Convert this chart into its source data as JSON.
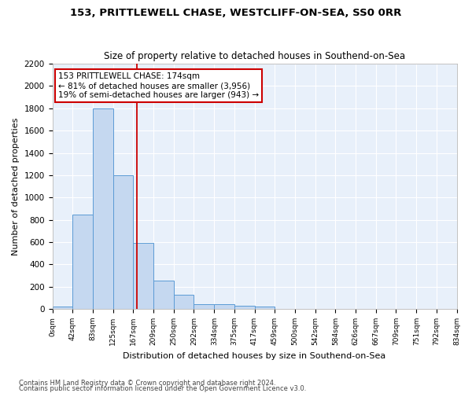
{
  "title": "153, PRITTLEWELL CHASE, WESTCLIFF-ON-SEA, SS0 0RR",
  "subtitle": "Size of property relative to detached houses in Southend-on-Sea",
  "xlabel": "Distribution of detached houses by size in Southend-on-Sea",
  "ylabel": "Number of detached properties",
  "footnote1": "Contains HM Land Registry data © Crown copyright and database right 2024.",
  "footnote2": "Contains public sector information licensed under the Open Government Licence v3.0.",
  "bar_edges": [
    0,
    42,
    83,
    125,
    167,
    209,
    250,
    292,
    334,
    375,
    417,
    459,
    500,
    542,
    584,
    626,
    667,
    709,
    751,
    792,
    834
  ],
  "bar_heights": [
    25,
    850,
    1800,
    1200,
    590,
    255,
    130,
    45,
    40,
    28,
    20,
    0,
    0,
    0,
    0,
    0,
    0,
    0,
    0,
    0
  ],
  "bar_color": "#c5d8f0",
  "bar_edge_color": "#5b9bd5",
  "background_color": "#e8f0fa",
  "grid_color": "#ffffff",
  "red_line_x": 174,
  "annotation_line1": "153 PRITTLEWELL CHASE: 174sqm",
  "annotation_line2": "← 81% of detached houses are smaller (3,956)",
  "annotation_line3": "19% of semi-detached houses are larger (943) →",
  "annotation_box_color": "#ffffff",
  "annotation_box_edge": "#cc0000",
  "ylim_max": 2200,
  "yticks": [
    0,
    200,
    400,
    600,
    800,
    1000,
    1200,
    1400,
    1600,
    1800,
    2000,
    2200
  ],
  "tick_labels": [
    "0sqm",
    "42sqm",
    "83sqm",
    "125sqm",
    "167sqm",
    "209sqm",
    "250sqm",
    "292sqm",
    "334sqm",
    "375sqm",
    "417sqm",
    "459sqm",
    "500sqm",
    "542sqm",
    "584sqm",
    "626sqm",
    "667sqm",
    "709sqm",
    "751sqm",
    "792sqm",
    "834sqm"
  ],
  "fig_bg": "#ffffff"
}
